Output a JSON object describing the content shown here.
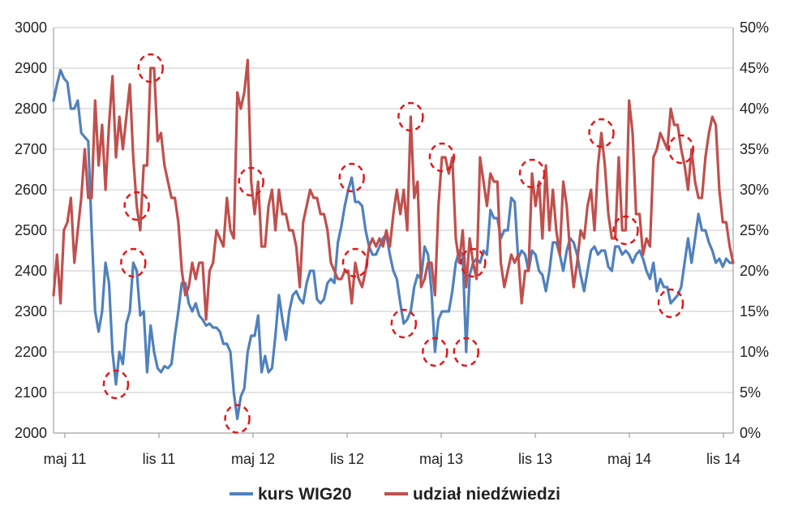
{
  "chart_data": {
    "type": "line",
    "title": "",
    "xlabel": "",
    "ylabel": "",
    "x_ticks": [
      "maj 11",
      "lis 11",
      "maj 12",
      "lis 12",
      "maj 13",
      "lis 13",
      "maj 14",
      "lis 14"
    ],
    "y_left": {
      "min": 2000,
      "max": 3000,
      "step": 100,
      "ticks": [
        "2000",
        "2100",
        "2200",
        "2300",
        "2400",
        "2500",
        "2600",
        "2700",
        "2800",
        "2900",
        "3000"
      ]
    },
    "y_right": {
      "min": 0,
      "max": 50,
      "step": 5,
      "ticks": [
        "0%",
        "5%",
        "10%",
        "15%",
        "20%",
        "25%",
        "30%",
        "35%",
        "40%",
        "45%",
        "50%"
      ]
    },
    "grid": true,
    "legend_position": "bottom",
    "series": [
      {
        "name": "kurs WIG20",
        "axis": "left",
        "color": "#4f81bd",
        "x": [
          0,
          1,
          2,
          3,
          4,
          5,
          6,
          7,
          8,
          9,
          10,
          11,
          12,
          13,
          14,
          15,
          16,
          17,
          18,
          19,
          20,
          21,
          22,
          23,
          24,
          25,
          26,
          27,
          28,
          29,
          30,
          31,
          32,
          33,
          34,
          35,
          36,
          37,
          38,
          39,
          40,
          41,
          42,
          43,
          44,
          45,
          46,
          47,
          48,
          49,
          50,
          51,
          52,
          53,
          54,
          55,
          56,
          57,
          58,
          59,
          60,
          61,
          62,
          63,
          64,
          65,
          66,
          67,
          68,
          69,
          70,
          71,
          72,
          73,
          74,
          75,
          76,
          77,
          78,
          79,
          80,
          81,
          82,
          83,
          84,
          85,
          86,
          87,
          88,
          89,
          90,
          91,
          92,
          93,
          94,
          95,
          96,
          97,
          98,
          99,
          100,
          101,
          102,
          103,
          104,
          105,
          106,
          107,
          108,
          109,
          110,
          111,
          112,
          113,
          114,
          115,
          116,
          117,
          118,
          119,
          120,
          121,
          122,
          123,
          124,
          125,
          126,
          127,
          128,
          129,
          130,
          131,
          132,
          133,
          134,
          135,
          136,
          137,
          138,
          139,
          140,
          141,
          142,
          143,
          144,
          145,
          146,
          147,
          148,
          149,
          150,
          151,
          152,
          153,
          154,
          155,
          156,
          157,
          158,
          159,
          160,
          161,
          162,
          163,
          164,
          165,
          166,
          167,
          168,
          169,
          170,
          171,
          172,
          173,
          174,
          175,
          176,
          177,
          178,
          179,
          180,
          181,
          182,
          183,
          184,
          185,
          186,
          187,
          188,
          189,
          190,
          191,
          192,
          193,
          194,
          195,
          196
        ],
        "values": [
          2820,
          2860,
          2895,
          2875,
          2865,
          2800,
          2800,
          2820,
          2740,
          2730,
          2720,
          2500,
          2300,
          2250,
          2300,
          2420,
          2370,
          2200,
          2120,
          2200,
          2170,
          2270,
          2300,
          2420,
          2400,
          2290,
          2300,
          2150,
          2265,
          2200,
          2160,
          2150,
          2165,
          2160,
          2170,
          2240,
          2300,
          2370,
          2370,
          2320,
          2300,
          2320,
          2290,
          2280,
          2265,
          2270,
          2260,
          2260,
          2250,
          2220,
          2220,
          2200,
          2100,
          2035,
          2090,
          2110,
          2200,
          2240,
          2240,
          2290,
          2150,
          2190,
          2150,
          2160,
          2240,
          2340,
          2280,
          2230,
          2300,
          2340,
          2350,
          2330,
          2320,
          2370,
          2400,
          2400,
          2330,
          2320,
          2330,
          2370,
          2380,
          2370,
          2470,
          2510,
          2560,
          2600,
          2630,
          2570,
          2570,
          2560,
          2500,
          2460,
          2440,
          2440,
          2460,
          2480,
          2490,
          2440,
          2400,
          2380,
          2320,
          2270,
          2280,
          2300,
          2360,
          2390,
          2380,
          2460,
          2440,
          2350,
          2200,
          2280,
          2300,
          2300,
          2300,
          2350,
          2420,
          2450,
          2440,
          2200,
          2390,
          2420,
          2430,
          2420,
          2450,
          2440,
          2550,
          2530,
          2530,
          2480,
          2500,
          2500,
          2580,
          2570,
          2430,
          2450,
          2440,
          2400,
          2450,
          2440,
          2400,
          2390,
          2350,
          2400,
          2470,
          2470,
          2440,
          2400,
          2450,
          2480,
          2470,
          2440,
          2390,
          2350,
          2400,
          2450,
          2460,
          2440,
          2450,
          2450,
          2410,
          2400,
          2460,
          2460,
          2440,
          2450,
          2440,
          2420,
          2440,
          2450,
          2430,
          2400,
          2380,
          2420,
          2350,
          2380,
          2360,
          2360,
          2320,
          2330,
          2340,
          2360,
          2420,
          2480,
          2420,
          2480,
          2540,
          2500,
          2500,
          2470,
          2450,
          2420,
          2430,
          2410,
          2430,
          2420,
          2420
        ]
      },
      {
        "name": "udział niedźwiedzi",
        "axis": "right",
        "color": "#c0504d",
        "x": [
          0,
          1,
          2,
          3,
          4,
          5,
          6,
          7,
          8,
          9,
          10,
          11,
          12,
          13,
          14,
          15,
          16,
          17,
          18,
          19,
          20,
          21,
          22,
          23,
          24,
          25,
          26,
          27,
          28,
          29,
          30,
          31,
          32,
          33,
          34,
          35,
          36,
          37,
          38,
          39,
          40,
          41,
          42,
          43,
          44,
          45,
          46,
          47,
          48,
          49,
          50,
          51,
          52,
          53,
          54,
          55,
          56,
          57,
          58,
          59,
          60,
          61,
          62,
          63,
          64,
          65,
          66,
          67,
          68,
          69,
          70,
          71,
          72,
          73,
          74,
          75,
          76,
          77,
          78,
          79,
          80,
          81,
          82,
          83,
          84,
          85,
          86,
          87,
          88,
          89,
          90,
          91,
          92,
          93,
          94,
          95,
          96,
          97,
          98,
          99,
          100,
          101,
          102,
          103,
          104,
          105,
          106,
          107,
          108,
          109,
          110,
          111,
          112,
          113,
          114,
          115,
          116,
          117,
          118,
          119,
          120,
          121,
          122,
          123,
          124,
          125,
          126,
          127,
          128,
          129,
          130,
          131,
          132,
          133,
          134,
          135,
          136,
          137,
          138,
          139,
          140,
          141,
          142,
          143,
          144,
          145,
          146,
          147,
          148,
          149,
          150,
          151,
          152,
          153,
          154,
          155,
          156,
          157,
          158,
          159,
          160,
          161,
          162,
          163,
          164,
          165,
          166,
          167,
          168,
          169,
          170,
          171,
          172,
          173,
          174,
          175,
          176,
          177,
          178,
          179,
          180,
          181,
          182,
          183,
          184,
          185,
          186,
          187,
          188,
          189,
          190,
          191,
          192,
          193,
          194,
          195,
          196
        ],
        "values": [
          17,
          22,
          16,
          25,
          26,
          29,
          21,
          25,
          29,
          35,
          29,
          29,
          41,
          33,
          38,
          30,
          38,
          44,
          34,
          39,
          35,
          39,
          43,
          34,
          28,
          25,
          33,
          33,
          45,
          45,
          36,
          37,
          33,
          31,
          29,
          29,
          26,
          20,
          17,
          18,
          21,
          19,
          21,
          21,
          14,
          20,
          21,
          25,
          24,
          23,
          29,
          25,
          24,
          42,
          40,
          42,
          46,
          31,
          27,
          31,
          23,
          23,
          28,
          30,
          25,
          30,
          27,
          27,
          25,
          25,
          23,
          18,
          26,
          28,
          30,
          29,
          29,
          27,
          27,
          25,
          21,
          20,
          19,
          19,
          20,
          20,
          16,
          21,
          19,
          18,
          20,
          23,
          24,
          23,
          24,
          23,
          25,
          23,
          27,
          30,
          27,
          30,
          25,
          39,
          29,
          31,
          18,
          19,
          21,
          21,
          17,
          28,
          34,
          34,
          32,
          34,
          24,
          21,
          25,
          18,
          24,
          21,
          19,
          34,
          31,
          28,
          32,
          31,
          31,
          21,
          18,
          20,
          22,
          21,
          22,
          16,
          20,
          20,
          32,
          28,
          31,
          24,
          33,
          25,
          30,
          25,
          22,
          31,
          28,
          22,
          18,
          21,
          25,
          24,
          28,
          30,
          25,
          33,
          37,
          33,
          27,
          24,
          24,
          34,
          25,
          25,
          41,
          37,
          27,
          27,
          22,
          24,
          23,
          34,
          35,
          37,
          36,
          35,
          40,
          38,
          38,
          35,
          33,
          30,
          35,
          31,
          29,
          29,
          34,
          37,
          39,
          38,
          30,
          26,
          26,
          23,
          21
        ]
      }
    ],
    "annotations": "dashed red circles marking extreme points"
  }
}
